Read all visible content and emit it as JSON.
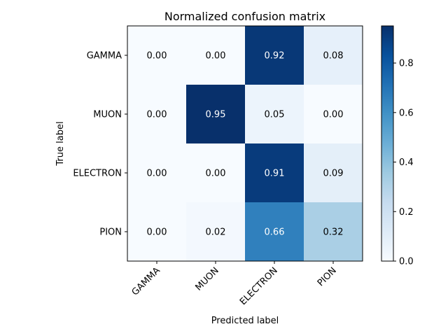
{
  "chart_data": {
    "type": "heatmap",
    "title": "Normalized confusion matrix",
    "xlabel": "Predicted label",
    "ylabel": "True label",
    "x_categories": [
      "GAMMA",
      "MUON",
      "ELECTRON",
      "PION"
    ],
    "y_categories": [
      "GAMMA",
      "MUON",
      "ELECTRON",
      "PION"
    ],
    "values": [
      [
        0.0,
        0.0,
        0.92,
        0.08
      ],
      [
        0.0,
        0.95,
        0.05,
        0.0
      ],
      [
        0.0,
        0.0,
        0.91,
        0.09
      ],
      [
        0.0,
        0.02,
        0.66,
        0.32
      ]
    ],
    "cell_labels": [
      [
        "0.00",
        "0.00",
        "0.92",
        "0.08"
      ],
      [
        "0.00",
        "0.95",
        "0.05",
        "0.00"
      ],
      [
        "0.00",
        "0.00",
        "0.91",
        "0.09"
      ],
      [
        "0.00",
        "0.02",
        "0.66",
        "0.32"
      ]
    ],
    "colormap": "Blues",
    "color_range": [
      0.0,
      0.95
    ],
    "colorbar_ticks": [
      0.0,
      0.2,
      0.4,
      0.6,
      0.8
    ],
    "colorbar_tick_labels": [
      "0.0",
      "0.2",
      "0.4",
      "0.6",
      "0.8"
    ],
    "grid": false
  }
}
